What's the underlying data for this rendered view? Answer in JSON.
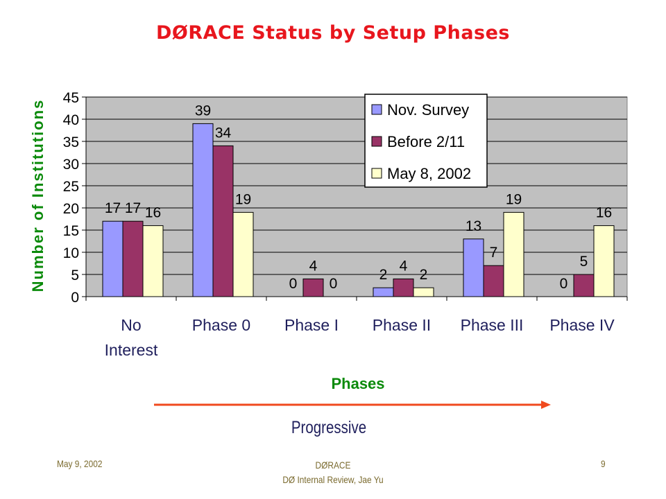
{
  "slide": {
    "title": "DØRACE Status by Setup Phases",
    "progress_label": "Progressive",
    "footer_left": "May 9, 2002",
    "footer_center_line1": "DØRACE",
    "footer_center_line2": "DØ Internal Review, Jae Yu",
    "footer_right": "9"
  },
  "colors": {
    "title": "#e8161d",
    "axis_label": "#0a8a0a",
    "plot_bg": "#c0c0c0",
    "arrow": "#f04a1e"
  },
  "chart_data": {
    "type": "bar",
    "title": "DØRACE Status by Setup Phases",
    "xlabel": "Phases",
    "ylabel": "Number of Institutions",
    "ylim": [
      0,
      45
    ],
    "ytick_step": 5,
    "grid": true,
    "legend_position": "top-right",
    "categories": [
      [
        "No",
        "Interest"
      ],
      [
        "Phase 0"
      ],
      [
        "Phase I"
      ],
      [
        "Phase II"
      ],
      [
        "Phase III"
      ],
      [
        "Phase IV"
      ]
    ],
    "series": [
      {
        "name": "Nov. Survey",
        "color": "#9999ff",
        "values": [
          17,
          39,
          0,
          2,
          13,
          0
        ]
      },
      {
        "name": "Before 2/11",
        "color": "#993366",
        "values": [
          17,
          34,
          4,
          4,
          7,
          5
        ]
      },
      {
        "name": "May 8, 2002",
        "color": "#ffffcc",
        "values": [
          16,
          19,
          0,
          2,
          19,
          16
        ]
      }
    ]
  }
}
